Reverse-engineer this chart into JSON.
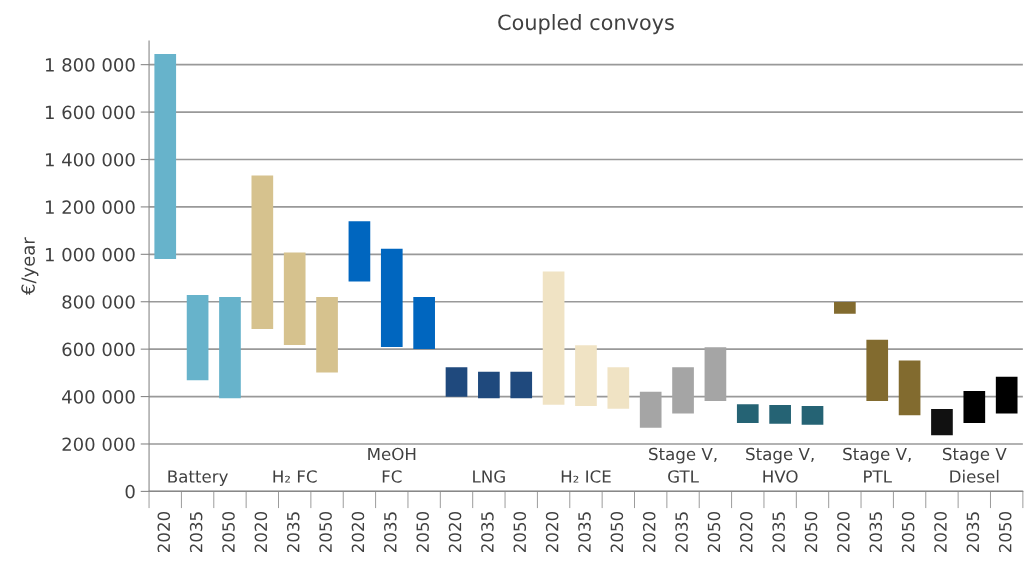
{
  "chart_data": {
    "type": "bar",
    "title": "Coupled convoys",
    "ylabel": "€/year",
    "categories": [
      "2020",
      "2035",
      "2050",
      "2020",
      "2035",
      "2050",
      "2020",
      "2035",
      "2050",
      "2020",
      "2035",
      "2050",
      "2020",
      "2035",
      "2050",
      "2020",
      "2035",
      "2050",
      "2020",
      "2035",
      "2050",
      "2020",
      "2035",
      "2050",
      "2020",
      "2035",
      "2050"
    ],
    "base": [
      980000,
      469000,
      393000,
      685000,
      617000,
      501000,
      885000,
      609000,
      601000,
      399000,
      393000,
      393000,
      365000,
      360000,
      349000,
      269000,
      329000,
      381000,
      289000,
      285000,
      281000,
      749000,
      381000,
      321000,
      237000,
      289000,
      329000
    ],
    "values": [
      865000,
      359000,
      427000,
      647000,
      391000,
      319000,
      255000,
      415000,
      219000,
      125000,
      112000,
      112000,
      563000,
      256000,
      175000,
      151000,
      195000,
      227000,
      79000,
      79000,
      79000,
      50000,
      259000,
      231000,
      111000,
      135000,
      155000
    ],
    "colors": [
      "#67b3cb",
      "#67b3cb",
      "#67b3cb",
      "#d6c28e",
      "#d6c28e",
      "#d6c28e",
      "#0066bf",
      "#0066bf",
      "#0066bf",
      "#1f497d",
      "#1f497d",
      "#1f497d",
      "#f0e3c4",
      "#f0e3c4",
      "#f0e3c4",
      "#a5a5a5",
      "#a5a5a5",
      "#a5a5a5",
      "#256374",
      "#256374",
      "#256374",
      "#826b2f",
      "#826b2f",
      "#826b2f",
      "#111111",
      "#000000",
      "#000000"
    ],
    "annotations": [
      "Battery",
      "H₂ FC",
      "MeOH\nFC",
      "LNG",
      "H₂ ICE",
      "Stage V,\nGTL",
      "Stage V,\nHVO",
      "Stage V,\nPTL",
      "Stage V\nDiesel"
    ],
    "ylim": [
      0,
      1900000
    ],
    "yticks": [
      0,
      {
        "value": 200000,
        "label": "200 000"
      },
      {
        "value": 400000,
        "label": "400 000"
      },
      {
        "value": 600000,
        "label": "600 000"
      },
      {
        "value": 800000,
        "label": "800 000"
      },
      {
        "value": 1000000,
        "label": "1 000 000"
      },
      {
        "value": 1200000,
        "label": "1 200 000"
      },
      {
        "value": 1400000,
        "label": "1 400 000"
      },
      {
        "value": 1600000,
        "label": "1 600 000"
      },
      {
        "value": 1800000,
        "label": "1 800 000"
      }
    ],
    "grid": "y"
  }
}
